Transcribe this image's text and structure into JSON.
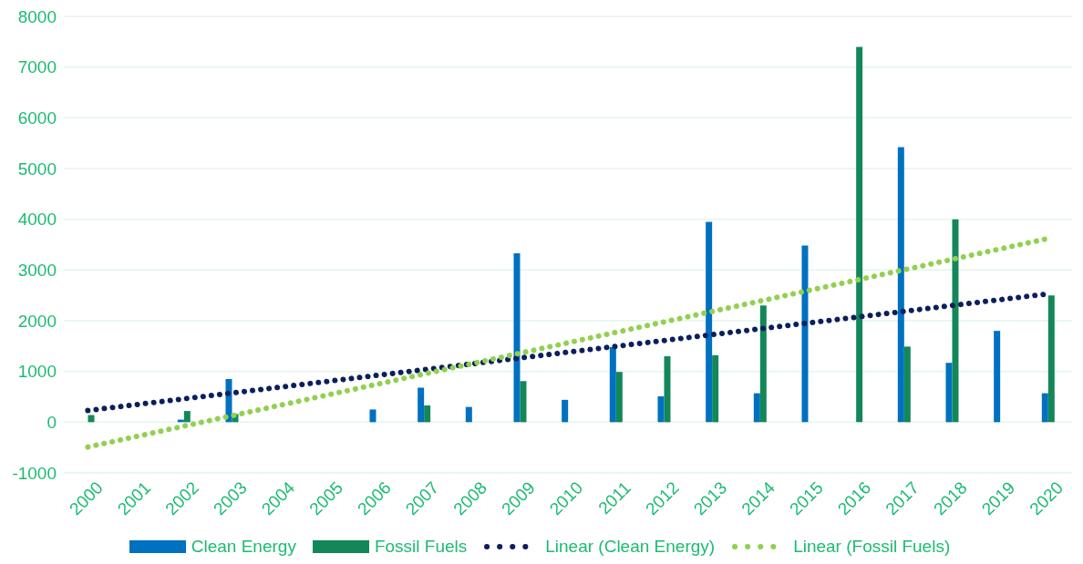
{
  "chart_data": {
    "type": "bar",
    "categories": [
      "2000",
      "2001",
      "2002",
      "2003",
      "2004",
      "2005",
      "2006",
      "2007",
      "2008",
      "2009",
      "2010",
      "2011",
      "2012",
      "2013",
      "2014",
      "2015",
      "2016",
      "2017",
      "2018",
      "2019",
      "2020"
    ],
    "series": [
      {
        "name": "Clean Energy",
        "color": "#0070c0",
        "values": [
          0,
          0,
          50,
          850,
          0,
          0,
          250,
          680,
          300,
          3330,
          440,
          1480,
          510,
          3950,
          570,
          3480,
          0,
          5420,
          1170,
          1800,
          570
        ]
      },
      {
        "name": "Fossil Fuels",
        "color": "#13875a",
        "values": [
          140,
          0,
          220,
          160,
          0,
          0,
          0,
          330,
          0,
          810,
          0,
          990,
          1300,
          1320,
          2300,
          0,
          7400,
          1490,
          4000,
          0,
          2500
        ]
      },
      {
        "name": "Linear (Clean Energy)",
        "type": "line",
        "color": "#0b1f5c",
        "line_style": "dotted",
        "marker": "none",
        "values": [
          230,
          345,
          460,
          575,
          690,
          805,
          920,
          1035,
          1150,
          1265,
          1380,
          1495,
          1610,
          1725,
          1840,
          1955,
          2070,
          2185,
          2300,
          2415,
          2530
        ]
      },
      {
        "name": "Linear (Fossil Fuels)",
        "type": "line",
        "color": "#92d050",
        "line_style": "dotted",
        "marker": "none",
        "values": [
          -490,
          -285,
          -79,
          127,
          332,
          538,
          743,
          949,
          1154,
          1360,
          1565,
          1771,
          1976,
          2182,
          2387,
          2593,
          2798,
          3004,
          3209,
          3415,
          3620
        ]
      }
    ],
    "ylim": [
      -1000,
      8000
    ],
    "yticks": [
      -1000,
      0,
      1000,
      2000,
      3000,
      4000,
      5000,
      6000,
      7000,
      8000
    ],
    "grid": "y",
    "legend": "bottom"
  }
}
